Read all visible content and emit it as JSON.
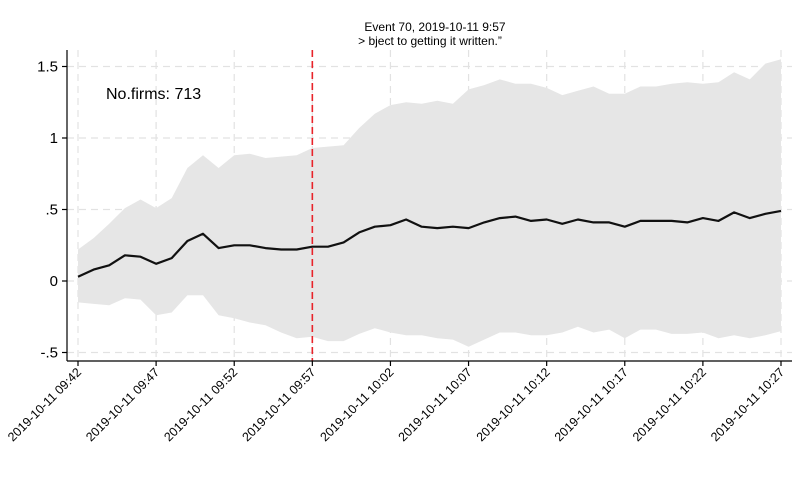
{
  "chart_data": {
    "type": "line",
    "title": "Event 70, 2019-10-11 9:57",
    "subtitle": "> bject to getting it written.”",
    "annotation": "No.firms: 713",
    "xlabel": "",
    "ylabel": "",
    "x_range": [
      "2019-10-11 09:42",
      "2019-10-11 10:27"
    ],
    "x_tick_labels": [
      "2019-10-11 09:42",
      "2019-10-11 09:47",
      "2019-10-11 09:52",
      "2019-10-11 09:57",
      "2019-10-11 10:02",
      "2019-10-11 10:07",
      "2019-10-11 10:12",
      "2019-10-11 10:17",
      "2019-10-11 10:22",
      "2019-10-11 10:27"
    ],
    "y_ticks": [
      1.5,
      1,
      0.5,
      0,
      -0.5
    ],
    "y_tick_labels": [
      "1.5",
      "1",
      ".5",
      "0",
      "-.5"
    ],
    "ylim": [
      -0.55,
      1.62
    ],
    "grid": true,
    "event_marker": {
      "x": "2019-10-11 09:57",
      "color": "#e8232a",
      "style": "dashed"
    },
    "colors": {
      "line": "#111111",
      "band": "#e6e6e6",
      "grid": "#e2e2e2"
    },
    "x": [
      "2019-10-11 09:42",
      "2019-10-11 09:43",
      "2019-10-11 09:44",
      "2019-10-11 09:45",
      "2019-10-11 09:46",
      "2019-10-11 09:47",
      "2019-10-11 09:48",
      "2019-10-11 09:49",
      "2019-10-11 09:50",
      "2019-10-11 09:51",
      "2019-10-11 09:52",
      "2019-10-11 09:53",
      "2019-10-11 09:54",
      "2019-10-11 09:55",
      "2019-10-11 09:56",
      "2019-10-11 09:57",
      "2019-10-11 09:58",
      "2019-10-11 09:59",
      "2019-10-11 10:00",
      "2019-10-11 10:01",
      "2019-10-11 10:02",
      "2019-10-11 10:03",
      "2019-10-11 10:04",
      "2019-10-11 10:05",
      "2019-10-11 10:06",
      "2019-10-11 10:07",
      "2019-10-11 10:08",
      "2019-10-11 10:09",
      "2019-10-11 10:10",
      "2019-10-11 10:11",
      "2019-10-11 10:12",
      "2019-10-11 10:13",
      "2019-10-11 10:14",
      "2019-10-11 10:15",
      "2019-10-11 10:16",
      "2019-10-11 10:17",
      "2019-10-11 10:18",
      "2019-10-11 10:19",
      "2019-10-11 10:20",
      "2019-10-11 10:21",
      "2019-10-11 10:22",
      "2019-10-11 10:23",
      "2019-10-11 10:24",
      "2019-10-11 10:25",
      "2019-10-11 10:26",
      "2019-10-11 10:27"
    ],
    "series": [
      {
        "values": [
          0.03,
          0.08,
          0.11,
          0.18,
          0.17,
          0.12,
          0.16,
          0.28,
          0.33,
          0.23,
          0.25,
          0.25,
          0.23,
          0.22,
          0.22,
          0.24,
          0.24,
          0.27,
          0.34,
          0.38,
          0.39,
          0.43,
          0.38,
          0.37,
          0.38,
          0.37,
          0.41,
          0.44,
          0.45,
          0.42,
          0.43,
          0.4,
          0.43,
          0.41,
          0.41,
          0.38,
          0.42,
          0.42,
          0.42,
          0.41,
          0.44,
          0.42,
          0.48,
          0.44,
          0.47,
          0.49
        ],
        "upper": [
          0.22,
          0.3,
          0.4,
          0.51,
          0.57,
          0.51,
          0.58,
          0.79,
          0.88,
          0.79,
          0.88,
          0.89,
          0.86,
          0.87,
          0.88,
          0.93,
          0.94,
          0.95,
          1.07,
          1.17,
          1.23,
          1.25,
          1.24,
          1.26,
          1.24,
          1.34,
          1.37,
          1.41,
          1.38,
          1.38,
          1.35,
          1.3,
          1.33,
          1.36,
          1.31,
          1.31,
          1.36,
          1.36,
          1.38,
          1.39,
          1.38,
          1.39,
          1.46,
          1.41,
          1.52,
          1.55
        ],
        "lower": [
          -0.15,
          -0.16,
          -0.17,
          -0.12,
          -0.13,
          -0.24,
          -0.22,
          -0.1,
          -0.1,
          -0.24,
          -0.26,
          -0.29,
          -0.31,
          -0.36,
          -0.4,
          -0.39,
          -0.42,
          -0.42,
          -0.37,
          -0.33,
          -0.36,
          -0.38,
          -0.38,
          -0.4,
          -0.41,
          -0.46,
          -0.41,
          -0.36,
          -0.36,
          -0.38,
          -0.38,
          -0.36,
          -0.32,
          -0.36,
          -0.34,
          -0.4,
          -0.34,
          -0.34,
          -0.37,
          -0.37,
          -0.36,
          -0.4,
          -0.38,
          -0.4,
          -0.38,
          -0.35
        ]
      }
    ]
  }
}
